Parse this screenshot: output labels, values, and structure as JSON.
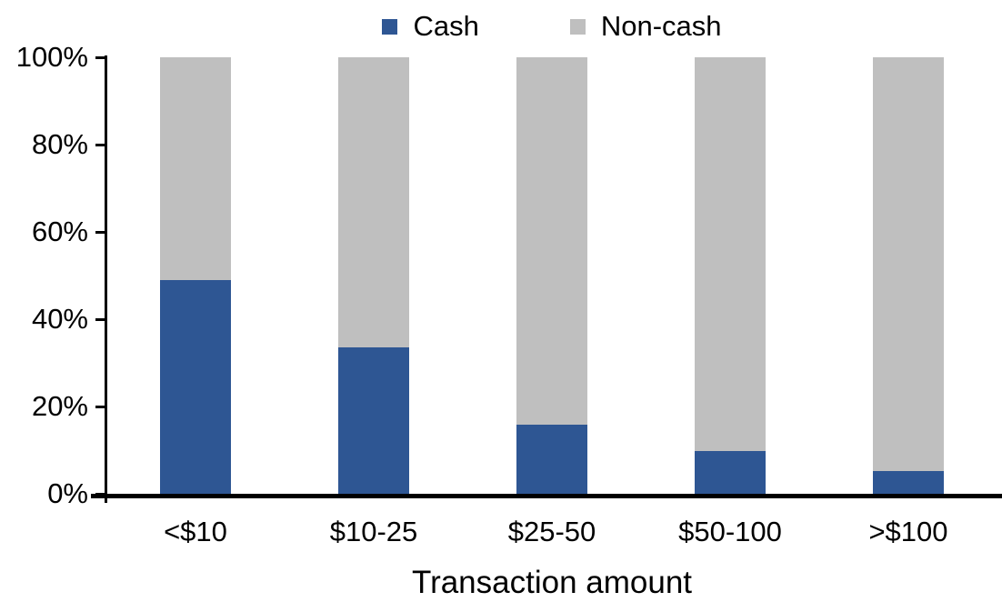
{
  "chart_data": {
    "type": "bar",
    "stacked": true,
    "title": "",
    "xlabel": "Transaction amount",
    "ylabel": "",
    "categories": [
      "<$10",
      "$10-25",
      "$25-50",
      "$50-100",
      ">$100"
    ],
    "series": [
      {
        "name": "Cash",
        "color": "#2E5693",
        "values": [
          49,
          33.5,
          15.8,
          9.8,
          5.3
        ]
      },
      {
        "name": "Non-cash",
        "color": "#BFBFBF",
        "values": [
          51,
          66.5,
          84.2,
          90.2,
          94.7
        ]
      }
    ],
    "ylim": [
      0,
      100
    ],
    "y_ticks": [
      "0%",
      "20%",
      "40%",
      "60%",
      "80%",
      "100%"
    ],
    "grid": false,
    "legend_position": "top-center",
    "axis_color": "#000000",
    "text_color": "#000000"
  }
}
